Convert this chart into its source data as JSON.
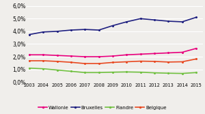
{
  "years": [
    2003,
    2004,
    2005,
    2006,
    2007,
    2008,
    2009,
    2010,
    2011,
    2012,
    2013,
    2014,
    2015
  ],
  "wallonie": [
    0.0215,
    0.0215,
    0.021,
    0.0205,
    0.02,
    0.02,
    0.0205,
    0.0215,
    0.022,
    0.0225,
    0.023,
    0.0235,
    0.0265
  ],
  "bruxelles": [
    0.0375,
    0.0395,
    0.04,
    0.041,
    0.0415,
    0.041,
    0.0445,
    0.0475,
    0.05,
    0.049,
    0.048,
    0.0475,
    0.051
  ],
  "flandre": [
    0.011,
    0.0105,
    0.0095,
    0.0085,
    0.0075,
    0.0075,
    0.0078,
    0.008,
    0.0078,
    0.0073,
    0.007,
    0.0068,
    0.0075
  ],
  "belgique": [
    0.0168,
    0.0168,
    0.0163,
    0.0156,
    0.0146,
    0.0146,
    0.0155,
    0.016,
    0.0165,
    0.0163,
    0.0158,
    0.016,
    0.0182
  ],
  "colors": {
    "wallonie": "#e8007d",
    "bruxelles": "#1f2080",
    "flandre": "#70c040",
    "belgique": "#e84820"
  },
  "legend_labels": [
    "Wallonie",
    "Bruxelles",
    "Flandre",
    "Belgique"
  ],
  "ylim": [
    0.0,
    0.062
  ],
  "yticks": [
    0.0,
    0.01,
    0.02,
    0.03,
    0.04,
    0.05,
    0.06
  ],
  "background_color": "#f0eeeb",
  "grid_color": "#ffffff",
  "marker": "o",
  "markersize": 2.2,
  "linewidth": 1.2
}
